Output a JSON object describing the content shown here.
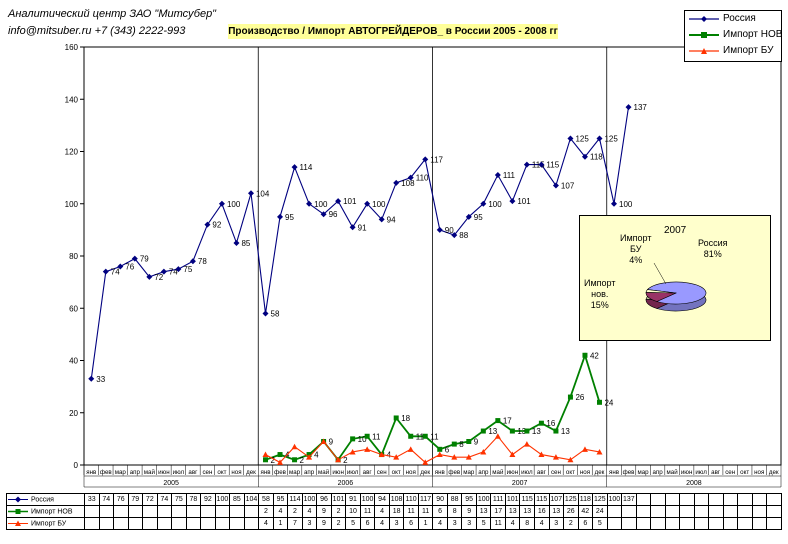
{
  "header": {
    "org": "Аналитический центр ЗАО \"Митсубер\"",
    "contact": "info@mitsuber.ru +7 (343) 2222-993"
  },
  "chart_data": [
    {
      "type": "line",
      "title": "Производство / Импорт АВТОГРЕЙДЕРОВ_ в России 2005 - 2008 гг",
      "months": [
        "янв",
        "фев",
        "мар",
        "апр",
        "май",
        "июн",
        "июл",
        "авг",
        "сен",
        "окт",
        "ноя",
        "дек"
      ],
      "years": [
        "2005",
        "2006",
        "2007",
        "2008"
      ],
      "ylim": [
        0,
        160
      ],
      "yticks": [
        0,
        20,
        40,
        60,
        80,
        100,
        120,
        140,
        160
      ],
      "grid": false,
      "legend_position": "top-right",
      "series": [
        {
          "name": "Россия",
          "color": "#000080",
          "marker": "diamond",
          "values": [
            33,
            74,
            76,
            79,
            72,
            74,
            75,
            78,
            92,
            100,
            85,
            104,
            58,
            95,
            114,
            100,
            96,
            101,
            91,
            100,
            94,
            108,
            110,
            117,
            90,
            88,
            95,
            100,
            111,
            101,
            115,
            115,
            107,
            125,
            118,
            125,
            100,
            137,
            null,
            null,
            null,
            null,
            null,
            null,
            null,
            null,
            null,
            null
          ]
        },
        {
          "name": "Импорт НОВ",
          "color": "#008000",
          "marker": "square",
          "values": [
            null,
            null,
            null,
            null,
            null,
            null,
            null,
            null,
            null,
            null,
            null,
            null,
            2,
            4,
            2,
            4,
            9,
            2,
            10,
            11,
            4,
            18,
            11,
            11,
            6,
            8,
            9,
            13,
            17,
            13,
            13,
            16,
            13,
            26,
            42,
            24,
            null,
            null,
            null,
            null,
            null,
            null,
            null,
            null,
            null,
            null,
            null,
            null
          ]
        },
        {
          "name": "Импорт БУ",
          "color": "#ff3300",
          "marker": "triangle",
          "values": [
            null,
            null,
            null,
            null,
            null,
            null,
            null,
            null,
            null,
            null,
            null,
            null,
            4,
            1,
            7,
            3,
            9,
            2,
            5,
            6,
            4,
            3,
            6,
            1,
            4,
            3,
            3,
            5,
            11,
            4,
            8,
            4,
            3,
            2,
            6,
            5,
            null,
            null,
            null,
            null,
            null,
            null,
            null,
            null,
            null,
            null,
            null,
            null
          ]
        }
      ]
    },
    {
      "type": "pie",
      "title": "2007",
      "slices": [
        {
          "name": "Россия",
          "label": "Россия\n81%",
          "value": 81,
          "color": "#9999ff"
        },
        {
          "name": "Импорт нов.",
          "label": "Импорт\nнов.\n15%",
          "value": 15,
          "color": "#993366"
        },
        {
          "name": "Импорт БУ",
          "label": "Импорт\nБУ\n4%",
          "value": 4,
          "color": "#ffffcc"
        }
      ]
    }
  ]
}
